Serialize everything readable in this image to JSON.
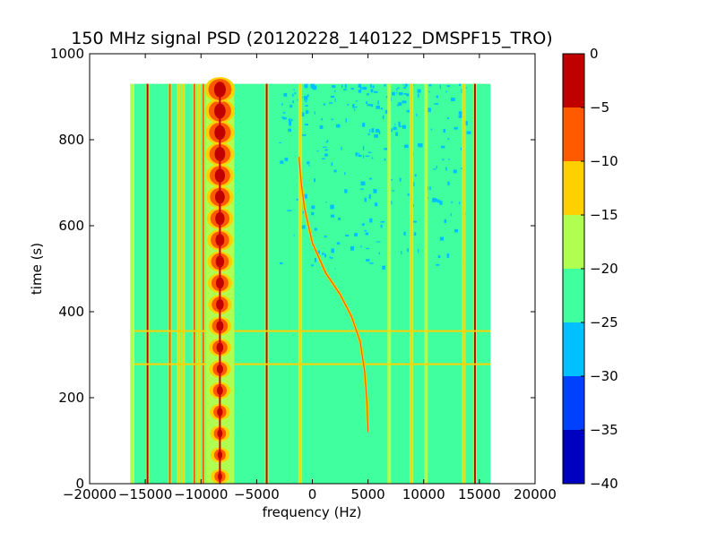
{
  "colors": {
    "background": "#80ffb0",
    "colormap": [
      "#0000c0",
      "#0040ff",
      "#00c0ff",
      "#40ff9f",
      "#b0ff50",
      "#ffd000",
      "#ff5a00",
      "#c00000"
    ]
  },
  "chart_data": {
    "type": "heatmap",
    "title": "150 MHz signal PSD (20120228_140122_DMSPF15_TRO)",
    "xlabel": "frequency (Hz)",
    "ylabel": "time (s)",
    "xlim": [
      -20000,
      20000
    ],
    "ylim": [
      0,
      1000
    ],
    "xticks": [
      -20000,
      -15000,
      -10000,
      -5000,
      0,
      5000,
      10000,
      15000,
      20000
    ],
    "xtick_labels": [
      "−20000",
      "−15000",
      "−10000",
      "−5000",
      "0",
      "5000",
      "10000",
      "15000",
      "20000"
    ],
    "yticks": [
      0,
      200,
      400,
      600,
      800,
      1000
    ],
    "ytick_labels": [
      "0",
      "200",
      "400",
      "600",
      "800",
      "1000"
    ],
    "data_extent": {
      "x": [
        -16000,
        16000
      ],
      "y": [
        0,
        930
      ]
    },
    "background_level": -22.5,
    "colorbar": {
      "levels": [
        -40,
        -35,
        -30,
        -25,
        -20,
        -15,
        -10,
        -5,
        0
      ],
      "labels": [
        "−40",
        "−35",
        "−30",
        "−25",
        "−20",
        "−15",
        "−10",
        "−5",
        "0"
      ]
    },
    "features": {
      "vertical_lines": [
        {
          "freq": -16200,
          "level": -17
        },
        {
          "freq": -14800,
          "level": -2
        },
        {
          "freq": -12800,
          "level": -8
        },
        {
          "freq": -12000,
          "level": -12
        },
        {
          "freq": -11600,
          "level": -12
        },
        {
          "freq": -10600,
          "level": -8
        },
        {
          "freq": -10200,
          "level": -12
        },
        {
          "freq": -9800,
          "level": -10
        },
        {
          "freq": -4100,
          "level": -4
        },
        {
          "freq": -1100,
          "level": -12
        },
        {
          "freq": 6900,
          "level": -17
        },
        {
          "freq": 8900,
          "level": -12
        },
        {
          "freq": 10200,
          "level": -17
        },
        {
          "freq": 13600,
          "level": -12
        },
        {
          "freq": 14600,
          "level": -3
        }
      ],
      "central_carrier": {
        "freq": -8300,
        "t_range": [
          0,
          930
        ]
      },
      "horizontal_lines": [
        {
          "time": 355,
          "level": -15
        },
        {
          "time": 278,
          "level": -15
        }
      ],
      "doppler_trace": [
        {
          "time": 760,
          "freq": -1200
        },
        {
          "time": 700,
          "freq": -1000
        },
        {
          "time": 640,
          "freq": -700
        },
        {
          "time": 560,
          "freq": 0
        },
        {
          "time": 490,
          "freq": 1200
        },
        {
          "time": 440,
          "freq": 2500
        },
        {
          "time": 390,
          "freq": 3500
        },
        {
          "time": 330,
          "freq": 4300
        },
        {
          "time": 260,
          "freq": 4700
        },
        {
          "time": 190,
          "freq": 4900
        },
        {
          "time": 120,
          "freq": 5000
        }
      ],
      "low_noise_region": {
        "freq": [
          -3000,
          14000
        ],
        "time": [
          500,
          930
        ],
        "level": -27.5
      }
    }
  }
}
